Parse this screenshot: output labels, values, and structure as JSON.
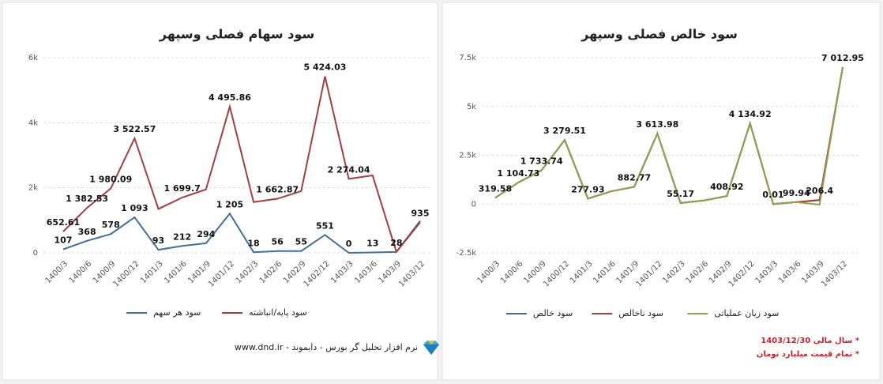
{
  "chart_data": [
    {
      "type": "line",
      "title": "سود سهام فصلی وسپهر",
      "categories": [
        "1400/3",
        "1400/6",
        "1400/9",
        "1400/12",
        "1401/3",
        "1401/6",
        "1401/9",
        "1401/12",
        "1402/3",
        "1402/6",
        "1402/9",
        "1402/12",
        "1403/3",
        "1403/6",
        "1403/9",
        "1403/12"
      ],
      "series": [
        {
          "name": "سود هر سهم",
          "color": "#3f6f9f",
          "values": [
            107,
            368,
            578,
            1093,
            93,
            212,
            294,
            1205,
            18,
            56,
            55,
            551,
            0,
            13,
            28,
            935
          ],
          "value_labels": [
            "107",
            "368",
            "578",
            "1 093",
            "93",
            "212",
            "294",
            "1 205",
            "18",
            "56",
            "55",
            "551",
            "0",
            "13",
            "28",
            "935"
          ]
        },
        {
          "name": "سود پایه/انباشته",
          "color": "#a63d3d",
          "values": [
            652.61,
            1382.53,
            1980.09,
            3522.57,
            1350,
            1699.7,
            1950,
            4495.86,
            1560,
            1662.87,
            1900,
            5424.03,
            2274.04,
            2380,
            30,
            980
          ],
          "value_labels": [
            "652.61",
            "1 382.53",
            "1 980.09",
            "3 522.57",
            null,
            "1 699.7",
            null,
            "4 495.86",
            null,
            "1 662.87",
            null,
            "5 424.03",
            "2 274.04",
            null,
            null,
            null
          ]
        }
      ],
      "ylim": [
        0,
        6000
      ],
      "yticks": [
        0,
        {
          "value": 2000,
          "label": "2k"
        },
        {
          "value": 4000,
          "label": "4k"
        },
        {
          "value": 6000,
          "label": "6k"
        }
      ],
      "grid": true,
      "legend": "bottom"
    },
    {
      "type": "line",
      "title": "سود خالص فصلی وسپهر",
      "categories": [
        "1400/3",
        "1400/6",
        "1400/9",
        "1400/12",
        "1401/3",
        "1401/6",
        "1401/9",
        "1401/12",
        "1402/3",
        "1402/6",
        "1402/9",
        "1402/12",
        "1403/3",
        "1403/6",
        "1403/9",
        "1403/12"
      ],
      "series": [
        {
          "name": "سود خالص",
          "color": "#3f6f9f",
          "values": [
            319.58,
            1104.73,
            1733.74,
            3279.51,
            277.93,
            650,
            882.77,
            3613.98,
            55.17,
            180,
            408.92,
            4134.92,
            0.01,
            99.94,
            206.4,
            7012.95
          ],
          "value_labels": [
            "319.58",
            "1 104.73",
            "1 733.74",
            "3 279.51",
            "277.93",
            null,
            "882.77",
            "3 613.98",
            "55.17",
            null,
            "408.92",
            "4 134.92",
            "0.01",
            "99.94",
            "206.4",
            "7 012.95"
          ]
        },
        {
          "name": "سود ناخالص",
          "color": "#a63d3d",
          "values": [
            319.58,
            1104.73,
            1733.74,
            3279.51,
            277.93,
            650,
            882.77,
            3613.98,
            55.17,
            180,
            408.92,
            4134.92,
            0.01,
            99.94,
            206.4,
            7012.95
          ]
        },
        {
          "name": "سود زیان عملیاتی",
          "color": "#8fa14b",
          "values": [
            319.58,
            1104.73,
            1733.74,
            3279.51,
            277.93,
            650,
            882.77,
            3613.98,
            55.17,
            180,
            408.92,
            4134.92,
            0.01,
            99.94,
            -30,
            7012.95
          ]
        }
      ],
      "ylim": [
        -2500,
        7500
      ],
      "yticks": [
        {
          "value": -2500,
          "label": "-2.5k"
        },
        0,
        {
          "value": 2500,
          "label": "2.5k"
        },
        {
          "value": 5000,
          "label": "5k"
        },
        {
          "value": 7500,
          "label": "7.5k"
        }
      ],
      "grid": true,
      "legend": "bottom"
    }
  ],
  "footer": {
    "source": "نرم افزار تحلیل گر بورس - دایموند - www.dnd.ir",
    "notes": [
      "* سال مالی 1403/12/30",
      "* تمام قیمت میلیارد تومان"
    ]
  }
}
